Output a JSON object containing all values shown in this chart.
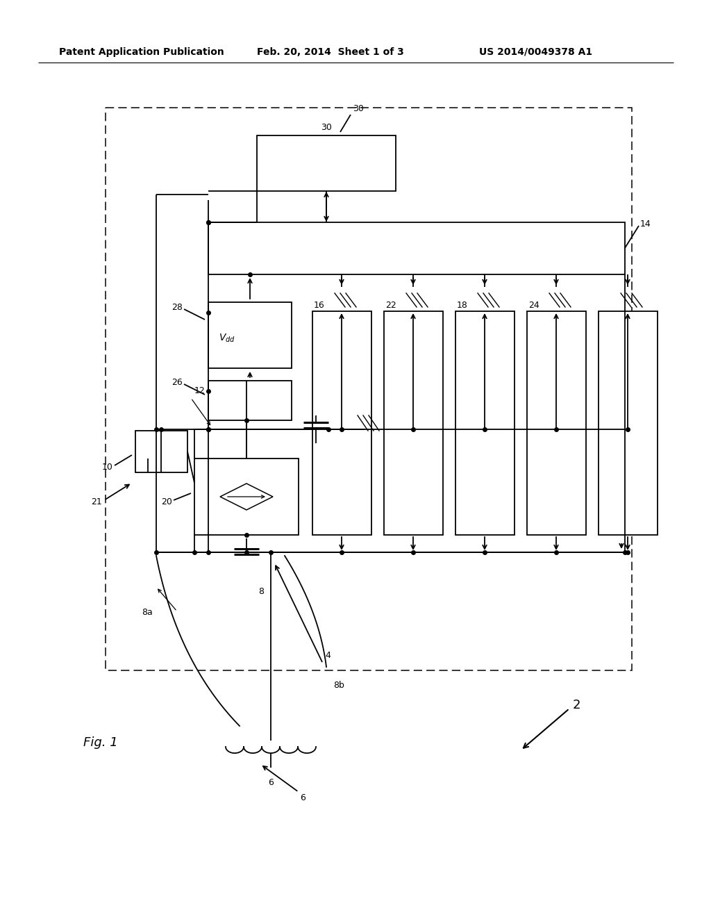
{
  "bg_color": "#ffffff",
  "lc": "#000000",
  "header_text": "Patent Application Publication",
  "header_date": "Feb. 20, 2014  Sheet 1 of 3",
  "header_patent": "US 2014/0049378 A1",
  "fig_label": "Fig. 1",
  "label_2": "2",
  "label_4": "4",
  "label_6": "6",
  "label_8": "8",
  "label_8a": "8a",
  "label_8b": "8b",
  "label_10": "10",
  "label_12": "12",
  "label_14": "14",
  "label_16": "16",
  "label_18": "18",
  "label_20": "20",
  "label_21": "21",
  "label_22": "22",
  "label_24": "24",
  "label_26": "26",
  "label_28": "28",
  "label_30": "30",
  "label_vdd": "V",
  "label_vdd_sub": "dd",
  "font_header": 10,
  "font_label": 9,
  "font_fig": 13
}
